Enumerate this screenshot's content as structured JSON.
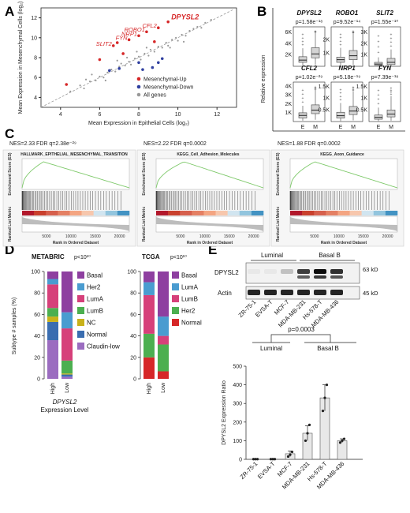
{
  "panels": {
    "A": {
      "label": "A",
      "chart_data": {
        "type": "scatter",
        "xlabel": "Mean Expression in Epithelial Cells (log₂)",
        "ylabel": "Mean Expression in Mesenchymal Cells (log₂)",
        "xlim": [
          3,
          13
        ],
        "ylim": [
          3,
          13
        ],
        "xticks": [
          "4",
          "6",
          "8",
          "10",
          "12"
        ],
        "yticks": [
          "4",
          "6",
          "8",
          "10",
          "12"
        ],
        "legend": [
          "Mesenchymal-Up",
          "Mesenchymal-Down",
          "All genes"
        ],
        "legend_colors": [
          "#d62728",
          "#3040a0",
          "#999999"
        ],
        "up_points": [
          [
            9.5,
            11.6
          ],
          [
            9.0,
            11.0
          ],
          [
            8.4,
            10.6
          ],
          [
            8.0,
            10.2
          ],
          [
            7.5,
            9.8
          ],
          [
            6.7,
            9.2
          ],
          [
            6.9,
            9.5
          ],
          [
            4.3,
            5.3
          ],
          [
            6.0,
            7.8
          ],
          [
            8.8,
            9.6
          ],
          [
            7.2,
            8.4
          ]
        ],
        "down_points": [
          [
            9.2,
            7.9
          ],
          [
            9.0,
            7.5
          ],
          [
            8.7,
            7.0
          ],
          [
            8.0,
            7.5
          ],
          [
            7.0,
            6.9
          ],
          [
            6.5,
            6.7
          ],
          [
            8.2,
            6.8
          ]
        ],
        "gray_points": [
          [
            4.5,
            4.6
          ],
          [
            5.0,
            5.2
          ],
          [
            5.2,
            4.9
          ],
          [
            5.5,
            5.6
          ],
          [
            5.8,
            5.7
          ],
          [
            6.0,
            6.1
          ],
          [
            6.2,
            6.0
          ],
          [
            6.4,
            6.5
          ],
          [
            6.6,
            6.8
          ],
          [
            6.8,
            6.6
          ],
          [
            7.0,
            7.1
          ],
          [
            7.1,
            7.4
          ],
          [
            7.3,
            7.2
          ],
          [
            7.5,
            7.6
          ],
          [
            7.6,
            7.3
          ],
          [
            7.8,
            7.9
          ],
          [
            8.0,
            8.1
          ],
          [
            8.1,
            7.8
          ],
          [
            8.3,
            8.4
          ],
          [
            8.5,
            8.2
          ],
          [
            8.6,
            8.8
          ],
          [
            8.8,
            8.6
          ],
          [
            9.0,
            9.1
          ],
          [
            9.2,
            9.0
          ],
          [
            9.4,
            9.5
          ],
          [
            9.5,
            9.2
          ],
          [
            9.7,
            9.8
          ],
          [
            9.9,
            10.0
          ],
          [
            10.0,
            9.7
          ],
          [
            10.2,
            10.3
          ],
          [
            10.4,
            10.2
          ],
          [
            10.6,
            10.7
          ],
          [
            10.8,
            10.9
          ],
          [
            11.0,
            11.1
          ],
          [
            11.2,
            11.0
          ],
          [
            11.4,
            11.5
          ],
          [
            11.7,
            11.8
          ],
          [
            7.4,
            8.0
          ],
          [
            6.9,
            7.7
          ],
          [
            8.4,
            9.0
          ],
          [
            5.6,
            6.3
          ],
          [
            6.3,
            5.7
          ],
          [
            9.6,
            9.0
          ],
          [
            10.3,
            9.6
          ],
          [
            5.3,
            5.8
          ],
          [
            7.9,
            8.6
          ]
        ],
        "annotations": [
          {
            "text": "DPYSL2",
            "x": 9.5,
            "y": 11.6
          },
          {
            "text": "CFL2",
            "x": 9.0,
            "y": 11.0
          },
          {
            "text": "ROBO1",
            "x": 8.4,
            "y": 10.6
          },
          {
            "text": "NRP1",
            "x": 8.0,
            "y": 10.2
          },
          {
            "text": "FYN",
            "x": 7.5,
            "y": 9.8
          },
          {
            "text": "SLIT2",
            "x": 6.7,
            "y": 9.2
          }
        ]
      }
    },
    "B": {
      "label": "B",
      "chart_data": {
        "type": "box",
        "ylabel": "Relative expression",
        "categories": [
          "E",
          "M"
        ],
        "genes": [
          {
            "name": "DPYSL2",
            "p": "p=1.58e⁻¹⁸",
            "ymax": 7000,
            "yticks": [
              [
                2000,
                "2K"
              ],
              [
                4000,
                "4K"
              ],
              [
                6000,
                "6K"
              ]
            ],
            "E": {
              "q1": 700,
              "med": 1100,
              "q3": 1700,
              "lo": 100,
              "hi": 3200
            },
            "M": {
              "q1": 1500,
              "med": 2200,
              "q3": 3300,
              "lo": 300,
              "hi": 6000
            }
          },
          {
            "name": "ROBO1",
            "p": "p=9.52e⁻¹⁴",
            "ymax": 3000,
            "yticks": [
              [
                1000,
                "1K"
              ],
              [
                2000,
                "2K"
              ]
            ],
            "E": {
              "q1": 300,
              "med": 500,
              "q3": 700,
              "lo": 50,
              "hi": 1400
            },
            "M": {
              "q1": 500,
              "med": 800,
              "q3": 1200,
              "lo": 100,
              "hi": 2500
            }
          },
          {
            "name": "SLIT2",
            "p": "p=1.55e⁻¹⁰",
            "ymax": 3500,
            "yticks": [
              [
                1000,
                "1K"
              ],
              [
                2000,
                "2K"
              ],
              [
                3000,
                "3K"
              ]
            ],
            "E": {
              "q1": 100,
              "med": 200,
              "q3": 350,
              "lo": 20,
              "hi": 800
            },
            "M": {
              "q1": 150,
              "med": 350,
              "q3": 700,
              "lo": 30,
              "hi": 1500
            }
          },
          {
            "name": "CFL2",
            "p": "p=1.02e⁻²⁹",
            "ymax": 4500,
            "yticks": [
              [
                1000,
                "1K"
              ],
              [
                2000,
                "2K"
              ],
              [
                3000,
                "3K"
              ],
              [
                4000,
                "4K"
              ]
            ],
            "E": {
              "q1": 400,
              "med": 700,
              "q3": 1000,
              "lo": 100,
              "hi": 1800
            },
            "M": {
              "q1": 900,
              "med": 1300,
              "q3": 1900,
              "lo": 200,
              "hi": 3600
            }
          },
          {
            "name": "NRP1",
            "p": "p=5.18e⁻¹⁹",
            "ymax": 1700,
            "yticks": [
              [
                500,
                "0.5K"
              ],
              [
                1000,
                "1K"
              ],
              [
                1500,
                "1.5K"
              ]
            ],
            "E": {
              "q1": 150,
              "med": 250,
              "q3": 400,
              "lo": 20,
              "hi": 800
            },
            "M": {
              "q1": 300,
              "med": 450,
              "q3": 650,
              "lo": 50,
              "hi": 1300
            }
          },
          {
            "name": "FYN",
            "p": "p=7.39e⁻¹⁸",
            "ymax": 1700,
            "yticks": [
              [
                500,
                "0.5K"
              ],
              [
                1000,
                "1K"
              ],
              [
                1500,
                "1.5K"
              ]
            ],
            "E": {
              "q1": 100,
              "med": 180,
              "q3": 280,
              "lo": 20,
              "hi": 600
            },
            "M": {
              "q1": 200,
              "med": 320,
              "q3": 500,
              "lo": 40,
              "hi": 1100
            }
          }
        ]
      }
    },
    "C": {
      "label": "C",
      "chart_data": {
        "type": "line",
        "plots": [
          {
            "title": "HALLMARK_EPITHELIAL_MESENCHYMAL_TRANSITION",
            "stat": "NES=2.33  FDR q=2.38e⁻²⁹",
            "peak": 0.12
          },
          {
            "title": "KEGG_Cell_Adhesion_Molecules",
            "stat": "NES=2.22  FDR q=0.0002",
            "peak": 0.18
          },
          {
            "title": "KEGG_Axon_Guidance",
            "stat": "NES=1.88  FDR q=0.0002",
            "peak": 0.15
          }
        ],
        "ylabel_top": "Enrichment Score (ES)",
        "ylabel_bottom": "Ranked List Metric",
        "xlabel": "Rank in Ordered Dataset",
        "xticks": [
          "5000",
          "10000",
          "15000",
          "20000"
        ]
      }
    },
    "D": {
      "label": "D",
      "chart_data": {
        "type": "bar",
        "ylabel": "Subtype # samples (%)",
        "xlabel_gene": "DPYSL2",
        "xlabel_rest": "Expression Level",
        "categories": [
          "High",
          "Low"
        ],
        "yticks": [
          "0",
          "20",
          "40",
          "60",
          "80",
          "100"
        ],
        "charts": [
          {
            "title": "METABRIC",
            "p": "p<10¹⁰",
            "series": [
              {
                "name": "Basal",
                "color": "#8e3fa0",
                "values": [
                  7,
                  38
                ]
              },
              {
                "name": "Her2",
                "color": "#4a9cd0",
                "values": [
                  5,
                  15
                ]
              },
              {
                "name": "LumA",
                "color": "#d6407a",
                "values": [
                  22,
                  30
                ]
              },
              {
                "name": "LumB",
                "color": "#4caf50",
                "values": [
                  8,
                  12
                ]
              },
              {
                "name": "NC",
                "color": "#c9b21a",
                "values": [
                  5,
                  1
                ]
              },
              {
                "name": "Normal",
                "color": "#3a6db0",
                "values": [
                  17,
                  2
                ]
              },
              {
                "name": "Claudin-low",
                "color": "#9b6cc0",
                "values": [
                  36,
                  2
                ]
              }
            ]
          },
          {
            "title": "TCGA",
            "p": "p<10¹⁰",
            "series": [
              {
                "name": "Basal",
                "color": "#8e3fa0",
                "values": [
                  10,
                  42
                ]
              },
              {
                "name": "LumA",
                "color": "#4a9cd0",
                "values": [
                  12,
                  18
                ]
              },
              {
                "name": "LumB",
                "color": "#d6407a",
                "values": [
                  36,
                  8
                ]
              },
              {
                "name": "Her2",
                "color": "#4caf50",
                "values": [
                  22,
                  25
                ]
              },
              {
                "name": "Normal",
                "color": "#d62728",
                "values": [
                  20,
                  7
                ]
              }
            ]
          }
        ]
      }
    },
    "E": {
      "label": "E",
      "western": {
        "groups": [
          "Luminal",
          "Basal B"
        ],
        "rows": [
          "DPYSL2",
          "Actin"
        ],
        "sizes": [
          "63 kD",
          "45 kD"
        ],
        "lanes": [
          "ZR-75-1",
          "EVSA-T",
          "MCF-7",
          "MDA-MB-231",
          "Hs-578-T",
          "MDA-MB-436"
        ]
      },
      "chart_data": {
        "type": "bar",
        "ylabel": "DPYSL2 Expression Ratio",
        "categories": [
          "ZR-75-1",
          "EVSA-T",
          "MCF-7",
          "MDA-MB-231",
          "Hs-578-T",
          "MDA-MB-436"
        ],
        "values": [
          1,
          1,
          30,
          140,
          330,
          100
        ],
        "errors": [
          1,
          1,
          15,
          40,
          70,
          10
        ],
        "points": [
          [
            1,
            1,
            1
          ],
          [
            1,
            1,
            1
          ],
          [
            15,
            25,
            40
          ],
          [
            100,
            140,
            185
          ],
          [
            260,
            330,
            400
          ],
          [
            90,
            100,
            110
          ]
        ],
        "ylim": [
          0,
          500
        ],
        "yticks": [
          "0",
          "100",
          "200",
          "300",
          "400",
          "500"
        ],
        "groups": [
          "Luminal",
          "Basal B"
        ],
        "p": "p=0.0003"
      }
    }
  }
}
